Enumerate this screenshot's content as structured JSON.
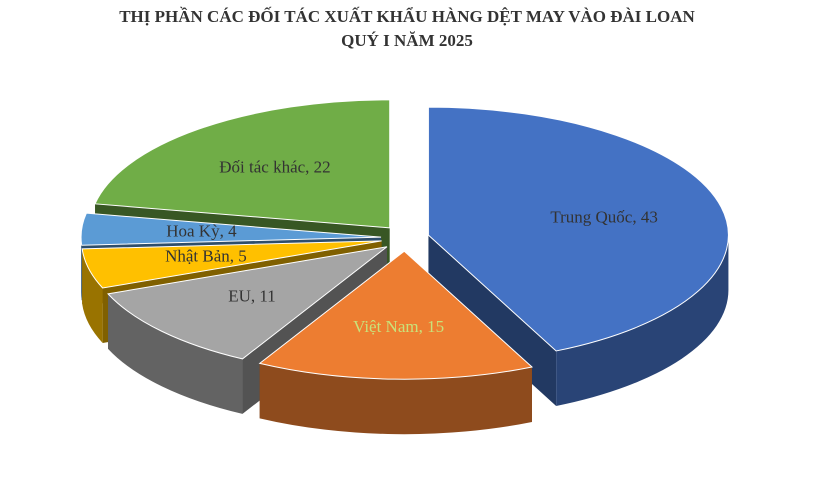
{
  "chart_data": {
    "type": "pie3d",
    "title": [
      "THỊ PHẦN CÁC ĐỐI TÁC XUẤT KHẨU HÀNG DỆT MAY VÀO ĐÀI LOAN",
      "QUÝ I NĂM 2025"
    ],
    "values": [
      43,
      15,
      11,
      5,
      4,
      22
    ],
    "value_labels": [
      "Trung Quốc, 43",
      "Việt Nam, 15",
      "EU, 11",
      "Nhật Bản, 5",
      "Hoa Kỳ, 4",
      "Đối tác khác, 22"
    ],
    "colors": [
      "#4472c4",
      "#ed7d31",
      "#a5a5a5",
      "#ffc000",
      "#5b9bd5",
      "#70ad47"
    ],
    "value_label_colors": [
      "#333333",
      "#c9e27a",
      "#333333",
      "#333333",
      "#333333",
      "#333333"
    ]
  }
}
